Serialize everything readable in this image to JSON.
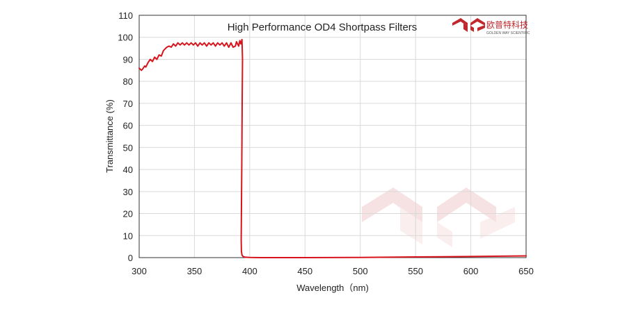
{
  "chart_data": {
    "type": "line",
    "title": "High Performance OD4 Shortpass  Filters",
    "xlabel": "Wavelength（nm)",
    "ylabel": "Transmittance  (%)",
    "xlim": [
      300,
      650
    ],
    "ylim": [
      0,
      110
    ],
    "xticks": [
      300,
      350,
      400,
      450,
      500,
      550,
      600,
      650
    ],
    "yticks": [
      0,
      10,
      20,
      30,
      40,
      50,
      60,
      70,
      80,
      90,
      100,
      110
    ],
    "grid": true,
    "legend": "none",
    "series": [
      {
        "color": "#d7141c",
        "x": [
          300,
          302,
          303,
          305,
          306,
          308,
          310,
          312,
          314,
          316,
          318,
          320,
          322,
          324,
          325,
          327,
          329,
          331,
          333,
          335,
          337,
          339,
          341,
          343,
          345,
          347,
          349,
          351,
          353,
          355,
          357,
          359,
          361,
          363,
          365,
          367,
          369,
          371,
          373,
          375,
          377,
          379,
          381,
          383,
          385,
          387,
          388,
          390,
          391,
          392,
          393,
          393.5,
          393.2,
          393,
          392.8,
          392.6,
          392.4,
          392.3,
          392.5,
          393,
          394,
          396,
          400,
          410,
          450,
          500,
          550,
          600,
          650
        ],
        "y": [
          86,
          85,
          85.5,
          87,
          86.5,
          88.5,
          90,
          89,
          91,
          90,
          92,
          91.5,
          94,
          95,
          95.5,
          96,
          95.5,
          97,
          96,
          97.5,
          96.5,
          97.5,
          96.5,
          97.5,
          96.5,
          97.5,
          96.5,
          97.5,
          96,
          97.5,
          96.5,
          97.5,
          96,
          97.5,
          96.5,
          97.5,
          96,
          97.5,
          96.5,
          97.5,
          96,
          97.5,
          95.5,
          97.5,
          95.5,
          96,
          98,
          96,
          98.5,
          97,
          99,
          90,
          75,
          55,
          40,
          28,
          16,
          8,
          3,
          1.2,
          0.5,
          0.2,
          0.05,
          0,
          0,
          0.1,
          0.3,
          0.5,
          0.8
        ]
      }
    ]
  },
  "brand": {
    "name_cn": "欧普特科技",
    "name_en": "GOLDEN WAY SCIENTIFIC",
    "color": "#c0282d"
  }
}
